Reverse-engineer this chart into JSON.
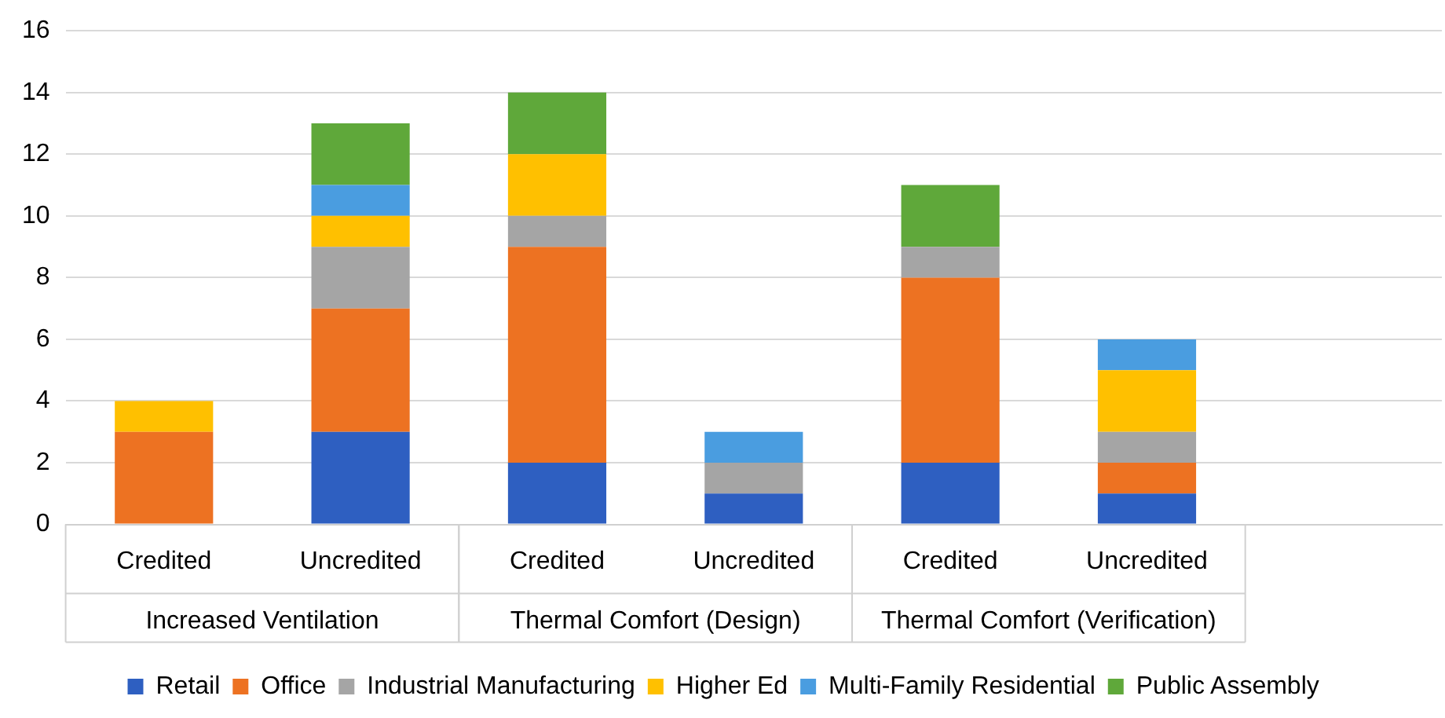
{
  "chart_data": {
    "type": "bar",
    "stacked": true,
    "categories": [
      "Credited",
      "Uncredited",
      "Credited",
      "Uncredited",
      "Credited",
      "Uncredited",
      null
    ],
    "series": [
      {
        "name": "Retail",
        "color": "#2e5fc1",
        "values": [
          0,
          3,
          2,
          1,
          2,
          1,
          null
        ]
      },
      {
        "name": "Office",
        "color": "#ed7222",
        "values": [
          3,
          4,
          7,
          0,
          6,
          1,
          null
        ]
      },
      {
        "name": "Industrial Manufacturing",
        "color": "#a5a5a5",
        "values": [
          0,
          2,
          1,
          1,
          1,
          1,
          null
        ]
      },
      {
        "name": "Higher Ed",
        "color": "#ffc000",
        "values": [
          1,
          1,
          2,
          0,
          0,
          2,
          null
        ]
      },
      {
        "name": "Multi-Family Residential",
        "color": "#4a9de0",
        "values": [
          0,
          1,
          0,
          1,
          0,
          1,
          null
        ]
      },
      {
        "name": "Public Assembly",
        "color": "#5fa83a",
        "values": [
          0,
          2,
          2,
          0,
          2,
          0,
          null
        ]
      }
    ],
    "annotations": [
      "Increased Ventilation",
      "Thermal Comfort (Design)",
      "Thermal Comfort (Verification)"
    ],
    "ylim": [
      0,
      16
    ],
    "yticks": [
      0,
      2,
      4,
      6,
      8,
      10,
      12,
      14,
      16
    ],
    "grid": "y",
    "legend": "bottom"
  }
}
